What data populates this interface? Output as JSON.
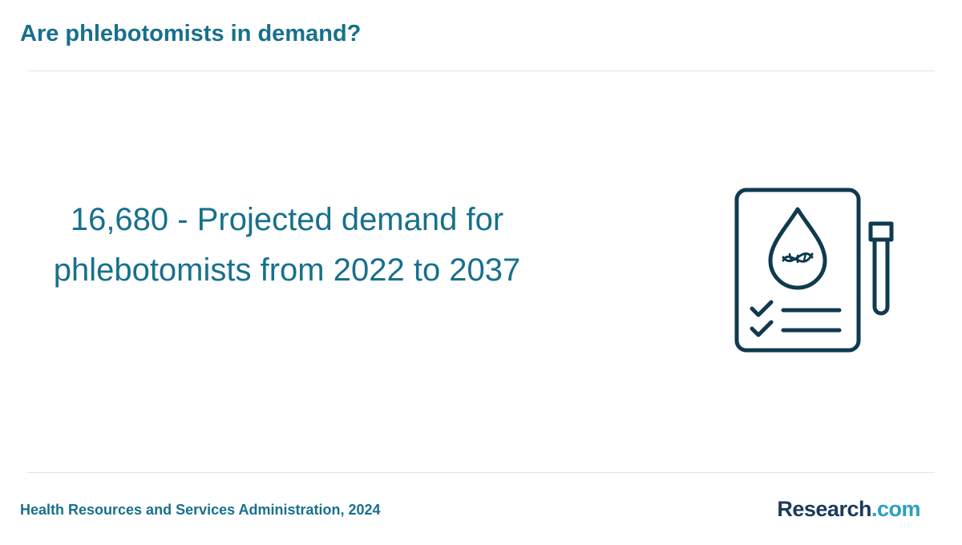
{
  "header": {
    "title": "Are phlebotomists in demand?"
  },
  "stat": {
    "text": "16,680 - Projected demand for phlebotomists from 2022 to 2037"
  },
  "footer": {
    "source": "Health Resources and Services Administration, 2024",
    "logo": {
      "name": "Research",
      "domain": ".com"
    }
  }
}
